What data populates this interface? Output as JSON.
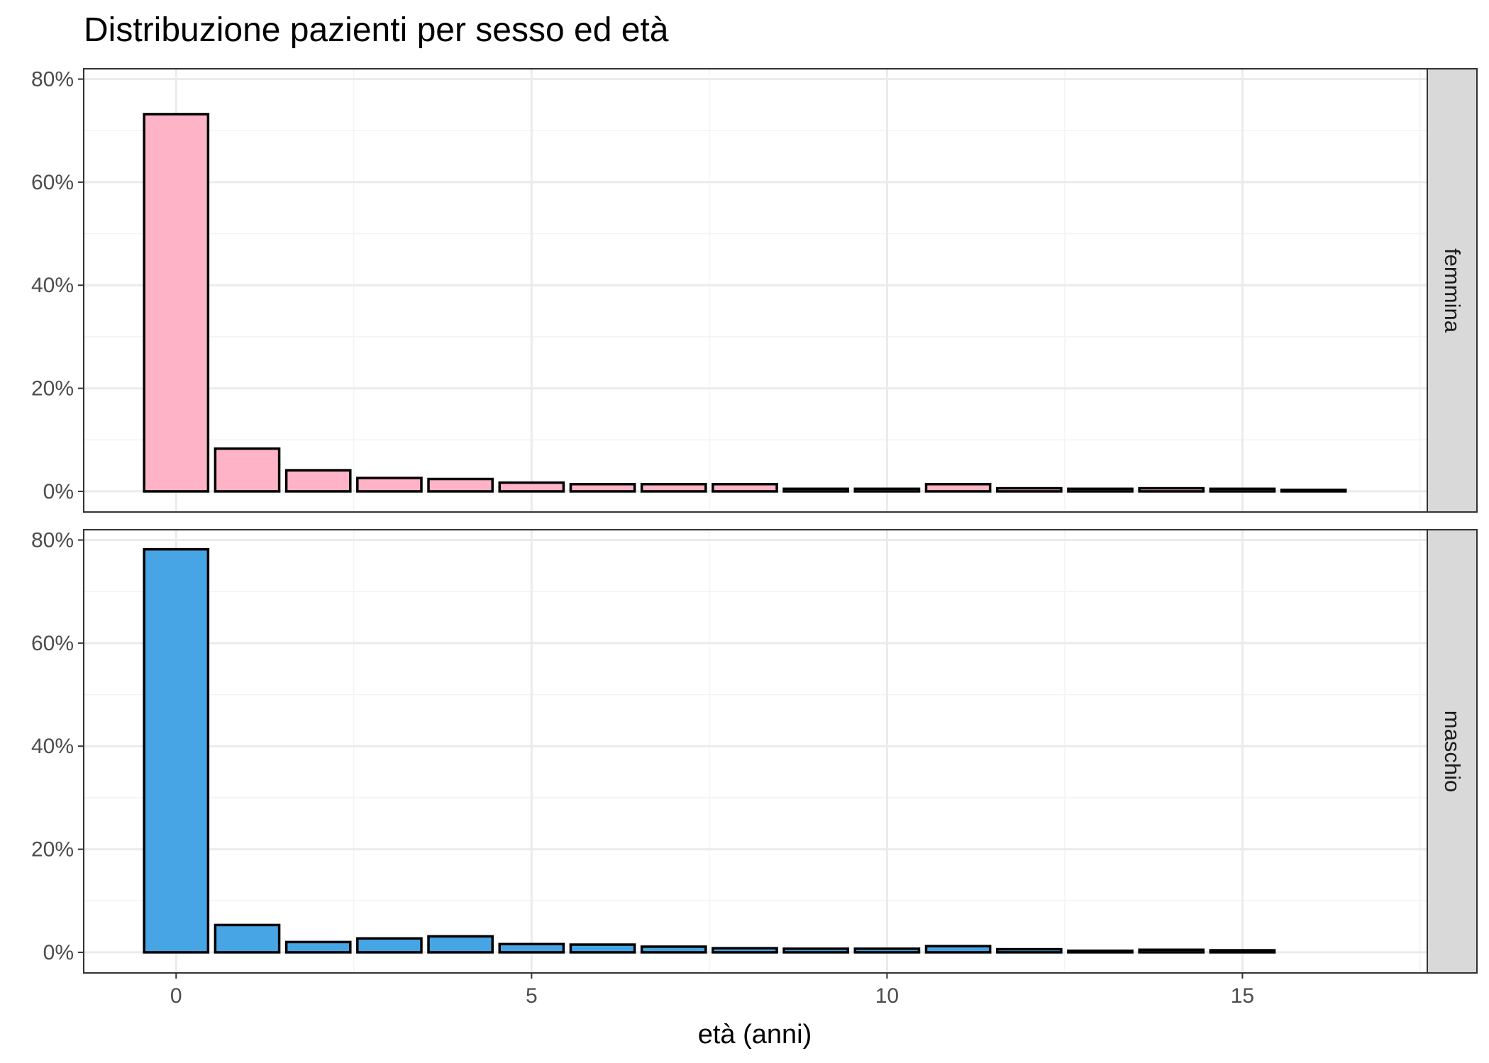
{
  "chart_data": {
    "type": "bar",
    "title": "Distribuzione pazienti per sesso ed età",
    "xlabel": "età (anni)",
    "ylabel": "",
    "xlim": [
      -1.3,
      17.6
    ],
    "ylim": [
      -0.04,
      0.82
    ],
    "x_ticks": [
      0,
      5,
      10,
      15
    ],
    "x_tick_labels": [
      "0",
      "5",
      "10",
      "15"
    ],
    "y_ticks": [
      0,
      0.2,
      0.4,
      0.6,
      0.8
    ],
    "y_tick_labels": [
      "0%",
      "20%",
      "40%",
      "60%",
      "80%"
    ],
    "grid": true,
    "facets": [
      {
        "label": "femmina",
        "fill": "#ffb3c6",
        "x": [
          0,
          1,
          2,
          3,
          4,
          5,
          6,
          7,
          8,
          9,
          10,
          11,
          12,
          13,
          14,
          15,
          16
        ],
        "values": [
          0.732,
          0.083,
          0.041,
          0.026,
          0.024,
          0.017,
          0.014,
          0.014,
          0.014,
          0.005,
          0.005,
          0.014,
          0.006,
          0.005,
          0.006,
          0.005,
          0.003
        ]
      },
      {
        "label": "maschio",
        "fill": "#47a5e5",
        "x": [
          0,
          1,
          2,
          3,
          4,
          5,
          6,
          7,
          8,
          9,
          10,
          11,
          12,
          13,
          14,
          15
        ],
        "values": [
          0.782,
          0.053,
          0.02,
          0.027,
          0.031,
          0.016,
          0.015,
          0.011,
          0.008,
          0.007,
          0.007,
          0.012,
          0.006,
          0.003,
          0.005,
          0.004
        ]
      }
    ],
    "colors": {
      "bar_stroke": "#000000",
      "strip_fill": "#d9d9d9",
      "grid_major": "#ebebeb",
      "panel_border": "#333333"
    }
  }
}
